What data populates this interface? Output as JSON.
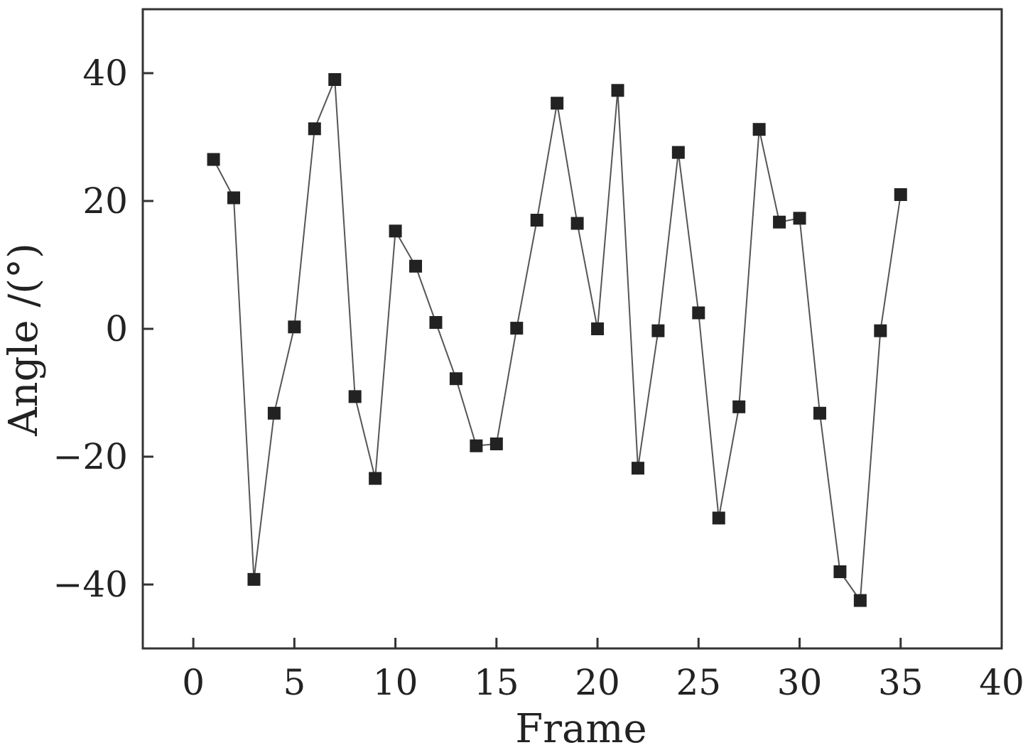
{
  "chart_data": {
    "type": "scatter",
    "title": "",
    "xlabel": "Frame",
    "ylabel": "Angle /(°)",
    "xlim": [
      -2.5,
      40
    ],
    "ylim": [
      -50,
      50
    ],
    "x_ticks": [
      0,
      5,
      10,
      15,
      20,
      25,
      30,
      35,
      40
    ],
    "x_tick_labels": [
      "0",
      "5",
      "10",
      "15",
      "20",
      "25",
      "30",
      "35",
      "40"
    ],
    "y_ticks": [
      -40,
      -20,
      0,
      20,
      40
    ],
    "y_tick_labels": [
      "−40",
      "−20",
      "0",
      "20",
      "40"
    ],
    "grid": false,
    "legend": "none",
    "marker": "square",
    "connected": true,
    "colors": {
      "marker": "#222222",
      "line": "#555555",
      "axis": "#333333"
    },
    "series": [
      {
        "x": [
          1,
          2,
          3,
          4,
          5,
          6,
          7,
          8,
          9,
          10,
          11,
          12,
          13,
          14,
          15,
          16,
          17,
          18,
          19,
          20,
          21,
          22,
          23,
          24,
          25,
          26,
          27,
          28,
          29,
          30,
          31,
          32,
          33,
          34,
          35
        ],
        "values": [
          26.5,
          20.5,
          -39.2,
          -13.2,
          0.3,
          31.3,
          39,
          -10.6,
          -23.4,
          15.3,
          9.8,
          1,
          -7.8,
          -18.3,
          -18,
          0.1,
          17,
          35.3,
          16.5,
          0,
          37.3,
          -21.8,
          -0.3,
          27.6,
          2.5,
          -29.6,
          -12.2,
          31.2,
          16.7,
          17.3,
          -13.2,
          -38,
          -42.5,
          -0.3,
          21
        ]
      }
    ]
  }
}
